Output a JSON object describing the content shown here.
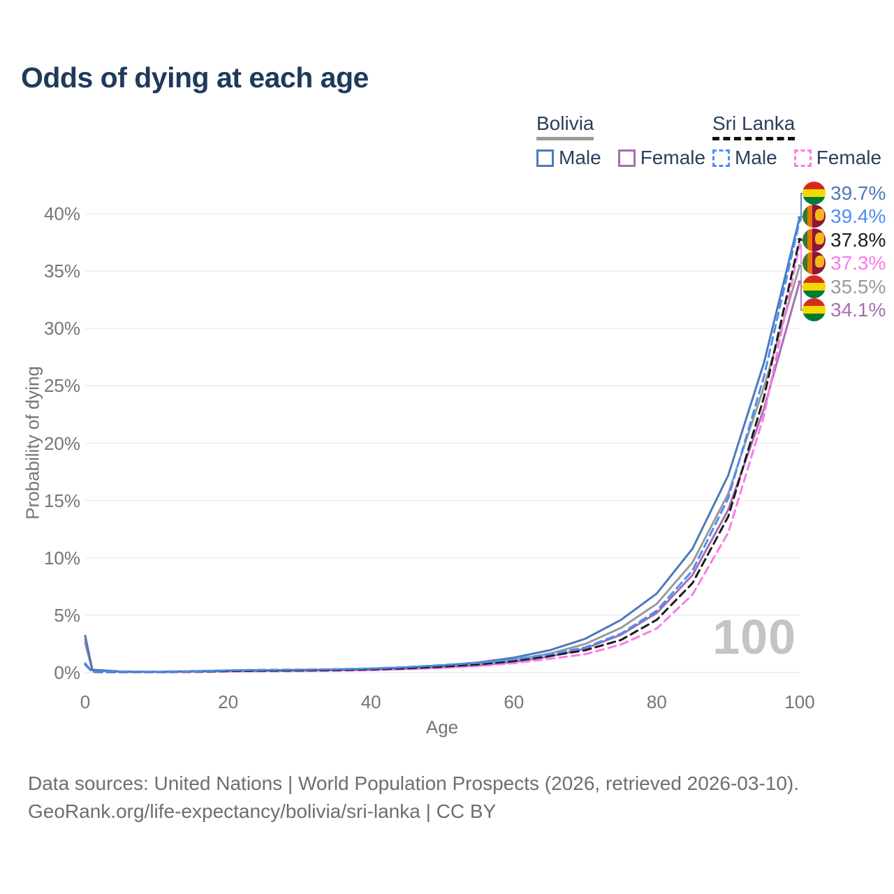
{
  "title": "Odds of dying at each age",
  "legend": {
    "groups": [
      {
        "name": "Bolivia",
        "line_style": "solid",
        "underline_color": "#9a9a9a",
        "items": [
          {
            "label": "Male",
            "color": "#4e79b8",
            "dashed": false
          },
          {
            "label": "Female",
            "color": "#a86db3",
            "dashed": false
          }
        ]
      },
      {
        "name": "Sri Lanka",
        "line_style": "dashed",
        "underline_color": "#111111",
        "items": [
          {
            "label": "Male",
            "color": "#4c8ef2",
            "dashed": true
          },
          {
            "label": "Female",
            "color": "#f97ce8",
            "dashed": true
          }
        ]
      }
    ]
  },
  "chart_data": {
    "type": "line",
    "title": "Odds of dying at each age",
    "xlabel": "Age",
    "ylabel": "Probability of dying",
    "xlim": [
      0,
      100
    ],
    "ylim_percent": [
      0,
      40
    ],
    "x_ticks": [
      0,
      20,
      40,
      60,
      80,
      100
    ],
    "y_ticks": [
      "0%",
      "5%",
      "10%",
      "15%",
      "20%",
      "25%",
      "30%",
      "35%",
      "40%"
    ],
    "grid": "horizontal",
    "legend_position": "top-right",
    "watermark": "100",
    "x": [
      0,
      1,
      5,
      10,
      15,
      20,
      25,
      30,
      35,
      40,
      45,
      50,
      55,
      60,
      65,
      70,
      75,
      80,
      85,
      90,
      95,
      100
    ],
    "series": [
      {
        "id": "bolivia-male",
        "name": "Bolivia Male",
        "country": "Bolivia",
        "sex": "Male",
        "color": "#4e79b8",
        "dash": "solid",
        "flag": "bolivia",
        "end_label": "39.7%",
        "end_value_percent": 39.7,
        "values": [
          3.2,
          0.25,
          0.09,
          0.07,
          0.12,
          0.18,
          0.21,
          0.23,
          0.27,
          0.34,
          0.45,
          0.62,
          0.88,
          1.3,
          1.95,
          2.95,
          4.6,
          6.9,
          10.8,
          17.2,
          27.0,
          39.7
        ]
      },
      {
        "id": "sri-lanka-male",
        "name": "Sri Lanka Male",
        "country": "Sri Lanka",
        "sex": "Male",
        "color": "#4c8ef2",
        "dash": "dashed",
        "flag": "sri-lanka",
        "end_label": "39.4%",
        "end_value_percent": 39.4,
        "values": [
          0.8,
          0.06,
          0.04,
          0.04,
          0.08,
          0.2,
          0.24,
          0.26,
          0.3,
          0.36,
          0.48,
          0.66,
          0.85,
          1.15,
          1.6,
          2.2,
          3.4,
          5.4,
          8.9,
          15.2,
          25.8,
          39.4
        ]
      },
      {
        "id": "sri-lanka-both",
        "name": "Sri Lanka (both sexes)",
        "country": "Sri Lanka",
        "sex": "Both",
        "color": "#1c1c1c",
        "dash": "dashed",
        "flag": "sri-lanka",
        "end_label": "37.8%",
        "end_value_percent": 37.8,
        "values": [
          0.75,
          0.055,
          0.035,
          0.035,
          0.06,
          0.14,
          0.17,
          0.19,
          0.22,
          0.28,
          0.38,
          0.52,
          0.72,
          1.0,
          1.45,
          1.95,
          2.85,
          4.6,
          7.8,
          13.6,
          24.0,
          37.8
        ]
      },
      {
        "id": "sri-lanka-female",
        "name": "Sri Lanka Female",
        "country": "Sri Lanka",
        "sex": "Female",
        "color": "#f97ce8",
        "dash": "dashed",
        "flag": "sri-lanka",
        "end_label": "37.3%",
        "end_value_percent": 37.3,
        "values": [
          0.7,
          0.05,
          0.03,
          0.03,
          0.05,
          0.09,
          0.11,
          0.13,
          0.16,
          0.21,
          0.29,
          0.41,
          0.58,
          0.82,
          1.2,
          1.6,
          2.45,
          3.85,
          6.8,
          12.2,
          22.4,
          37.3
        ]
      },
      {
        "id": "bolivia-both",
        "name": "Bolivia (both sexes)",
        "country": "Bolivia",
        "sex": "Both",
        "color": "#9a9a9a",
        "dash": "solid",
        "flag": "bolivia",
        "end_label": "35.5%",
        "end_value_percent": 35.5,
        "values": [
          2.9,
          0.23,
          0.08,
          0.06,
          0.1,
          0.15,
          0.18,
          0.2,
          0.24,
          0.29,
          0.39,
          0.53,
          0.75,
          1.1,
          1.65,
          2.5,
          3.9,
          6.0,
          9.6,
          15.6,
          24.9,
          35.5
        ]
      },
      {
        "id": "bolivia-female",
        "name": "Bolivia Female",
        "country": "Bolivia",
        "sex": "Female",
        "color": "#a86db3",
        "dash": "solid",
        "flag": "bolivia",
        "end_label": "34.1%",
        "end_value_percent": 34.1,
        "values": [
          2.6,
          0.2,
          0.07,
          0.06,
          0.09,
          0.12,
          0.14,
          0.16,
          0.2,
          0.24,
          0.33,
          0.45,
          0.63,
          0.92,
          1.4,
          2.1,
          3.3,
          5.2,
          8.5,
          14.2,
          23.0,
          34.1
        ]
      }
    ]
  },
  "colors": {
    "title": "#1e3a5c",
    "axis_text": "#757575",
    "gridline": "#ececec",
    "watermark": "#c4c4c4",
    "footer_text": "#6e6e6e"
  },
  "flags": {
    "bolivia": {
      "red": "#d52b1e",
      "yellow": "#f4d900",
      "green": "#007a33"
    },
    "sri_lanka": {
      "green": "#2e7d32",
      "orange": "#eb7400",
      "maroon": "#8d153a",
      "gold": "#f7b718"
    }
  },
  "footer": {
    "line1": "Data sources: United Nations | World Population Prospects (2026, retrieved 2026-03-10).",
    "line2": "GeoRank.org/life-expectancy/bolivia/sri-lanka | CC BY"
  }
}
